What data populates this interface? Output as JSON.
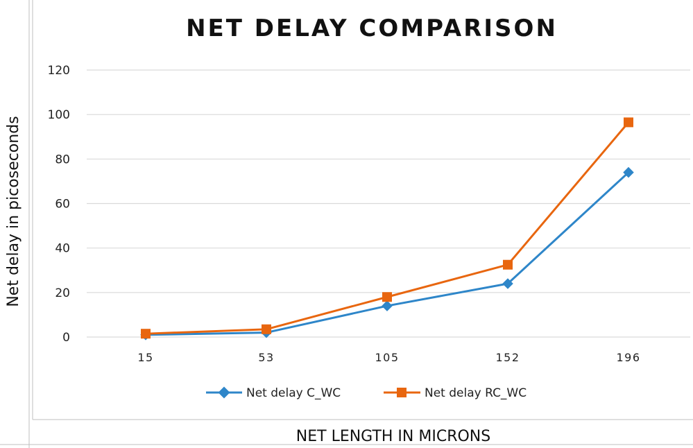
{
  "chart_data": {
    "type": "line",
    "title": "NET DELAY COMPARISON",
    "xlabel": "NET LENGTH IN MICRONS",
    "ylabel": "Net delay in picoseconds",
    "categories": [
      "15",
      "53",
      "105",
      "152",
      "196"
    ],
    "series": [
      {
        "name": "Net delay C_WC",
        "values": [
          1,
          2,
          14,
          24,
          74
        ],
        "color": "#2E86C9",
        "marker": "diamond"
      },
      {
        "name": "Net delay RC_WC",
        "values": [
          1.5,
          3.5,
          18,
          32.5,
          96.5
        ],
        "color": "#E8660F",
        "marker": "square"
      }
    ],
    "ylim": [
      0,
      120
    ],
    "yticks": [
      "0",
      "20",
      "40",
      "60",
      "80",
      "100",
      "120"
    ],
    "grid": true,
    "legend_position": "bottom"
  }
}
